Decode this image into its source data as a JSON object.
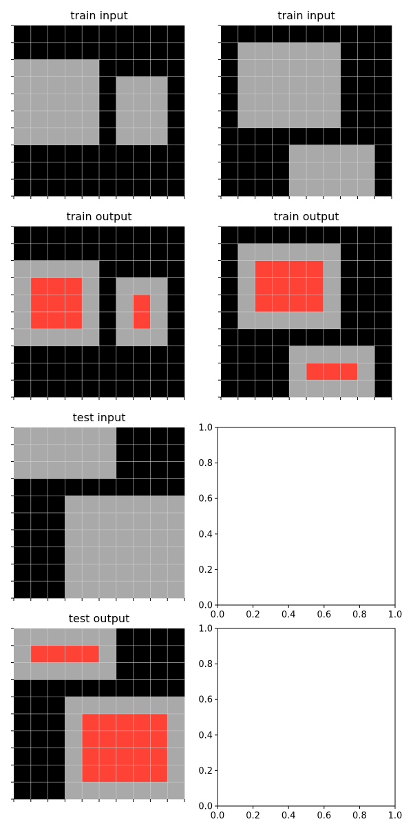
{
  "colors": {
    "background": "#000000",
    "shape": "#a9a9a9",
    "highlight": "#ff4136",
    "gridline": "#d3d3d3",
    "axes": "#000000"
  },
  "chart_data": [
    {
      "type": "grid",
      "title": "train input",
      "cells": [
        [
          0,
          0,
          0,
          0,
          0,
          0,
          0,
          0,
          0,
          0
        ],
        [
          0,
          0,
          0,
          0,
          0,
          0,
          0,
          0,
          0,
          0
        ],
        [
          1,
          1,
          1,
          1,
          1,
          0,
          0,
          0,
          0,
          0
        ],
        [
          1,
          1,
          1,
          1,
          1,
          0,
          1,
          1,
          1,
          0
        ],
        [
          1,
          1,
          1,
          1,
          1,
          0,
          1,
          1,
          1,
          0
        ],
        [
          1,
          1,
          1,
          1,
          1,
          0,
          1,
          1,
          1,
          0
        ],
        [
          1,
          1,
          1,
          1,
          1,
          0,
          1,
          1,
          1,
          0
        ],
        [
          0,
          0,
          0,
          0,
          0,
          0,
          0,
          0,
          0,
          0
        ],
        [
          0,
          0,
          0,
          0,
          0,
          0,
          0,
          0,
          0,
          0
        ],
        [
          0,
          0,
          0,
          0,
          0,
          0,
          0,
          0,
          0,
          0
        ]
      ]
    },
    {
      "type": "grid",
      "title": "train input",
      "cells": [
        [
          0,
          0,
          0,
          0,
          0,
          0,
          0,
          0,
          0,
          0
        ],
        [
          0,
          1,
          1,
          1,
          1,
          1,
          1,
          0,
          0,
          0
        ],
        [
          0,
          1,
          1,
          1,
          1,
          1,
          1,
          0,
          0,
          0
        ],
        [
          0,
          1,
          1,
          1,
          1,
          1,
          1,
          0,
          0,
          0
        ],
        [
          0,
          1,
          1,
          1,
          1,
          1,
          1,
          0,
          0,
          0
        ],
        [
          0,
          1,
          1,
          1,
          1,
          1,
          1,
          0,
          0,
          0
        ],
        [
          0,
          0,
          0,
          0,
          0,
          0,
          0,
          0,
          0,
          0
        ],
        [
          0,
          0,
          0,
          0,
          1,
          1,
          1,
          1,
          1,
          0
        ],
        [
          0,
          0,
          0,
          0,
          1,
          1,
          1,
          1,
          1,
          0
        ],
        [
          0,
          0,
          0,
          0,
          1,
          1,
          1,
          1,
          1,
          0
        ]
      ]
    },
    {
      "type": "grid",
      "title": "train output",
      "cells": [
        [
          0,
          0,
          0,
          0,
          0,
          0,
          0,
          0,
          0,
          0
        ],
        [
          0,
          0,
          0,
          0,
          0,
          0,
          0,
          0,
          0,
          0
        ],
        [
          1,
          1,
          1,
          1,
          1,
          0,
          0,
          0,
          0,
          0
        ],
        [
          1,
          2,
          2,
          2,
          1,
          0,
          1,
          1,
          1,
          0
        ],
        [
          1,
          2,
          2,
          2,
          1,
          0,
          1,
          2,
          1,
          0
        ],
        [
          1,
          2,
          2,
          2,
          1,
          0,
          1,
          2,
          1,
          0
        ],
        [
          1,
          1,
          1,
          1,
          1,
          0,
          1,
          1,
          1,
          0
        ],
        [
          0,
          0,
          0,
          0,
          0,
          0,
          0,
          0,
          0,
          0
        ],
        [
          0,
          0,
          0,
          0,
          0,
          0,
          0,
          0,
          0,
          0
        ],
        [
          0,
          0,
          0,
          0,
          0,
          0,
          0,
          0,
          0,
          0
        ]
      ]
    },
    {
      "type": "grid",
      "title": "train output",
      "cells": [
        [
          0,
          0,
          0,
          0,
          0,
          0,
          0,
          0,
          0,
          0
        ],
        [
          0,
          1,
          1,
          1,
          1,
          1,
          1,
          0,
          0,
          0
        ],
        [
          0,
          1,
          2,
          2,
          2,
          2,
          1,
          0,
          0,
          0
        ],
        [
          0,
          1,
          2,
          2,
          2,
          2,
          1,
          0,
          0,
          0
        ],
        [
          0,
          1,
          2,
          2,
          2,
          2,
          1,
          0,
          0,
          0
        ],
        [
          0,
          1,
          1,
          1,
          1,
          1,
          1,
          0,
          0,
          0
        ],
        [
          0,
          0,
          0,
          0,
          0,
          0,
          0,
          0,
          0,
          0
        ],
        [
          0,
          0,
          0,
          0,
          1,
          1,
          1,
          1,
          1,
          0
        ],
        [
          0,
          0,
          0,
          0,
          1,
          2,
          2,
          2,
          1,
          0
        ],
        [
          0,
          0,
          0,
          0,
          1,
          1,
          1,
          1,
          1,
          0
        ]
      ]
    },
    {
      "type": "grid",
      "title": "test input",
      "cells": [
        [
          1,
          1,
          1,
          1,
          1,
          1,
          0,
          0,
          0,
          0
        ],
        [
          1,
          1,
          1,
          1,
          1,
          1,
          0,
          0,
          0,
          0
        ],
        [
          1,
          1,
          1,
          1,
          1,
          1,
          0,
          0,
          0,
          0
        ],
        [
          0,
          0,
          0,
          0,
          0,
          0,
          0,
          0,
          0,
          0
        ],
        [
          0,
          0,
          0,
          1,
          1,
          1,
          1,
          1,
          1,
          1
        ],
        [
          0,
          0,
          0,
          1,
          1,
          1,
          1,
          1,
          1,
          1
        ],
        [
          0,
          0,
          0,
          1,
          1,
          1,
          1,
          1,
          1,
          1
        ],
        [
          0,
          0,
          0,
          1,
          1,
          1,
          1,
          1,
          1,
          1
        ],
        [
          0,
          0,
          0,
          1,
          1,
          1,
          1,
          1,
          1,
          1
        ],
        [
          0,
          0,
          0,
          1,
          1,
          1,
          1,
          1,
          1,
          1
        ]
      ]
    },
    {
      "type": "empty",
      "title": "",
      "xlim": [
        0,
        1
      ],
      "ylim": [
        0,
        1
      ],
      "xticks": [
        "0.0",
        "0.2",
        "0.4",
        "0.6",
        "0.8",
        "1.0"
      ],
      "yticks": [
        "0.0",
        "0.2",
        "0.4",
        "0.6",
        "0.8",
        "1.0"
      ]
    },
    {
      "type": "grid",
      "title": "test output",
      "cells": [
        [
          1,
          1,
          1,
          1,
          1,
          1,
          0,
          0,
          0,
          0
        ],
        [
          1,
          2,
          2,
          2,
          2,
          1,
          0,
          0,
          0,
          0
        ],
        [
          1,
          1,
          1,
          1,
          1,
          1,
          0,
          0,
          0,
          0
        ],
        [
          0,
          0,
          0,
          0,
          0,
          0,
          0,
          0,
          0,
          0
        ],
        [
          0,
          0,
          0,
          1,
          1,
          1,
          1,
          1,
          1,
          1
        ],
        [
          0,
          0,
          0,
          1,
          2,
          2,
          2,
          2,
          2,
          1
        ],
        [
          0,
          0,
          0,
          1,
          2,
          2,
          2,
          2,
          2,
          1
        ],
        [
          0,
          0,
          0,
          1,
          2,
          2,
          2,
          2,
          2,
          1
        ],
        [
          0,
          0,
          0,
          1,
          2,
          2,
          2,
          2,
          2,
          1
        ],
        [
          0,
          0,
          0,
          1,
          1,
          1,
          1,
          1,
          1,
          1
        ]
      ]
    },
    {
      "type": "empty",
      "title": "",
      "xlim": [
        0,
        1
      ],
      "ylim": [
        0,
        1
      ],
      "xticks": [
        "0.0",
        "0.2",
        "0.4",
        "0.6",
        "0.8",
        "1.0"
      ],
      "yticks": [
        "0.0",
        "0.2",
        "0.4",
        "0.6",
        "0.8",
        "1.0"
      ]
    }
  ]
}
